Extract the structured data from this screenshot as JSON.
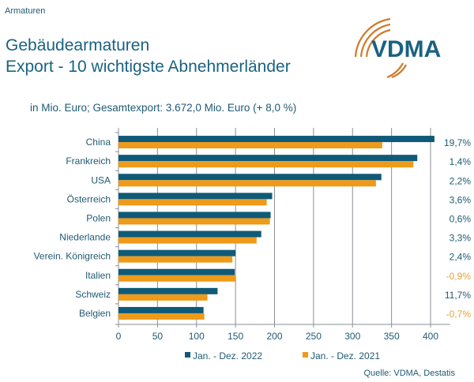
{
  "header": {
    "section": "Armaturen",
    "title_line1": "Gebäudearmaturen",
    "title_line2": "Export - 10 wichtigste Abnehmerländer",
    "logo_text": "VDMA",
    "subtitle": "in Mio. Euro; Gesamtexport: 3.672,0 Mio. Euro (+ 8,0 %)",
    "source": "Quelle: VDMA, Destatis"
  },
  "colors": {
    "series_2022": "#0f5a78",
    "series_2021": "#ee9a1a",
    "positive_change": "#1f5a73",
    "negative_change": "#e8a23a",
    "logo_blue": "#1a6281",
    "logo_arcs": "#d07a2a"
  },
  "chart_data": {
    "type": "bar",
    "orientation": "horizontal",
    "title": "Gebäudearmaturen Export - 10 wichtigste Abnehmerländer",
    "xlabel": "",
    "ylabel": "",
    "unit": "Mio. Euro",
    "xlim": [
      0,
      425
    ],
    "xticks": [
      0,
      50,
      100,
      150,
      200,
      250,
      300,
      350,
      400
    ],
    "grid": true,
    "legend_position": "bottom",
    "categories": [
      "China",
      "Frankreich",
      "USA",
      "Österreich",
      "Polen",
      "Niederlande",
      "Verein. Königreich",
      "Italien",
      "Schweiz",
      "Belgien"
    ],
    "series": [
      {
        "name": "Jan. - Dez. 2022",
        "values": [
          405,
          383,
          337,
          197,
          195,
          183,
          150,
          149,
          127,
          109
        ]
      },
      {
        "name": "Jan. - Dez. 2021",
        "values": [
          338,
          378,
          330,
          190,
          194,
          177,
          146,
          150,
          114,
          110
        ]
      }
    ],
    "change_labels": [
      "19,7%",
      "1,4%",
      "2,2%",
      "3,6%",
      "0,6%",
      "3,3%",
      "2,4%",
      "-0,9%",
      "11,7%",
      "-0,7%"
    ]
  }
}
